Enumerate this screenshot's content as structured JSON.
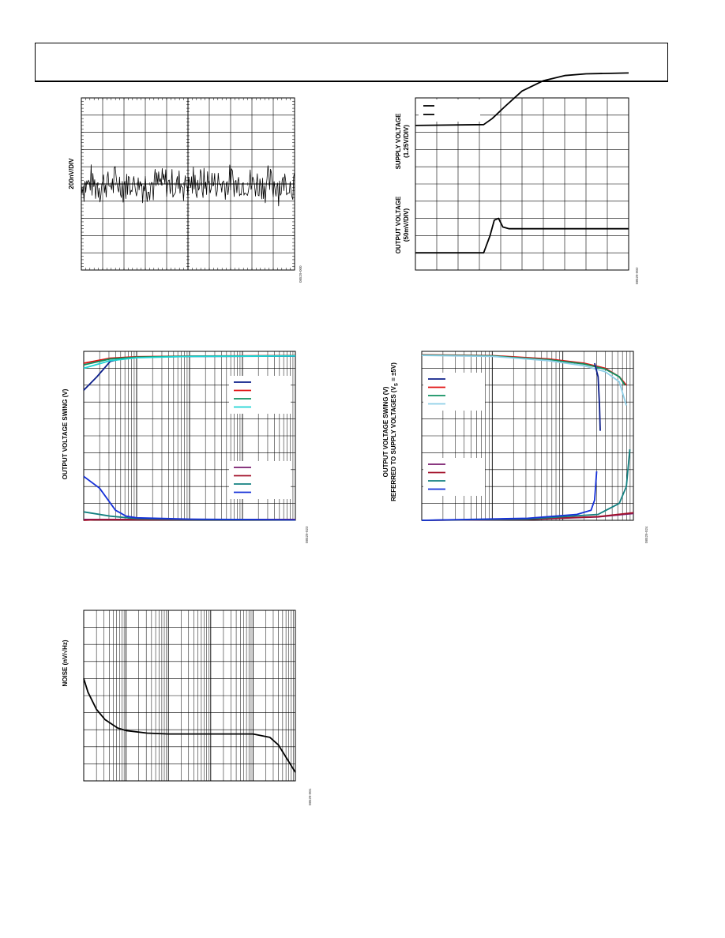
{
  "page": {
    "header_text": ""
  },
  "figures": [
    {
      "id": "noise-time",
      "ylabel": "200nV/DIV",
      "fig_id": "08529-000",
      "chart_data": {
        "type": "line",
        "x_divisions": 10,
        "y_divisions": 10,
        "grid": true,
        "minor_ticks": true,
        "series": [
          {
            "color": "#000000",
            "shape": "noise",
            "center_div": 5.0,
            "amplitude_div": 1.3
          }
        ]
      }
    },
    {
      "id": "supply-step",
      "ylabel_top": [
        "SUPPLY VOLTAGE",
        "(1.25V/DIV)"
      ],
      "ylabel_bottom": [
        "OUTPUT VOLTAGE",
        "(50mV/DIV)"
      ],
      "fig_id": "08529-002",
      "chart_data": {
        "type": "line",
        "x_divisions": 10,
        "y_divisions": 10,
        "grid": true,
        "legend": {
          "position": "top-left",
          "entries": [
            {
              "color": "#000000"
            },
            {
              "color": "#000000"
            }
          ]
        },
        "series": [
          {
            "color": "#000000",
            "points": [
              [
                0,
                8.4
              ],
              [
                3.2,
                8.45
              ],
              [
                3.6,
                8.8
              ],
              [
                4.2,
                9.5
              ],
              [
                5,
                10.4
              ],
              [
                6,
                11.0
              ],
              [
                7,
                11.3
              ],
              [
                8,
                11.4
              ],
              [
                10,
                11.45
              ]
            ]
          },
          {
            "color": "#000000",
            "points": [
              [
                0,
                1.0
              ],
              [
                3.2,
                1.0
              ],
              [
                3.5,
                2.0
              ],
              [
                3.7,
                2.9
              ],
              [
                3.9,
                3.0
              ],
              [
                4.1,
                2.5
              ],
              [
                4.4,
                2.4
              ],
              [
                6,
                2.4
              ],
              [
                10,
                2.4
              ]
            ]
          }
        ]
      }
    },
    {
      "id": "swing-vs-load",
      "ylabel": "OUTPUT VOLTAGE SWING (V)",
      "fig_id": "08529-023",
      "chart_data": {
        "type": "line",
        "xscale": "log",
        "x_decades": 4,
        "y_divisions": 10,
        "grid": true,
        "legend": [
          {
            "position": "upper-right",
            "entries": [
              {
                "color": "#0d1f8a"
              },
              {
                "color": "#e01010"
              },
              {
                "color": "#109060"
              },
              {
                "color": "#1ed4d4"
              }
            ]
          },
          {
            "position": "lower-right",
            "entries": [
              {
                "color": "#7a1c6e"
              },
              {
                "color": "#a3112a"
              },
              {
                "color": "#138080"
              },
              {
                "color": "#1530d8"
              }
            ]
          }
        ],
        "series": [
          {
            "color": "#0d1f8a",
            "points": [
              [
                0,
                7.7
              ],
              [
                0.25,
                8.5
              ],
              [
                0.5,
                9.4
              ],
              [
                0.7,
                9.55
              ],
              [
                1,
                9.65
              ],
              [
                2,
                9.7
              ],
              [
                4,
                9.72
              ]
            ]
          },
          {
            "color": "#e01010",
            "points": [
              [
                0,
                9.3
              ],
              [
                0.5,
                9.6
              ],
              [
                1,
                9.68
              ],
              [
                2,
                9.72
              ],
              [
                4,
                9.75
              ]
            ]
          },
          {
            "color": "#109060",
            "points": [
              [
                0,
                9.2
              ],
              [
                0.5,
                9.55
              ],
              [
                1,
                9.66
              ],
              [
                2,
                9.71
              ],
              [
                4,
                9.74
              ]
            ]
          },
          {
            "color": "#1ed4d4",
            "points": [
              [
                0,
                9.0
              ],
              [
                0.5,
                9.45
              ],
              [
                1,
                9.62
              ],
              [
                2,
                9.7
              ],
              [
                4,
                9.73
              ]
            ]
          },
          {
            "color": "#7a1c6e",
            "points": [
              [
                0,
                0.05
              ],
              [
                4,
                0.05
              ]
            ]
          },
          {
            "color": "#a3112a",
            "points": [
              [
                0,
                0.0
              ],
              [
                0.2,
                0.03
              ],
              [
                4,
                0.05
              ]
            ]
          },
          {
            "color": "#138080",
            "points": [
              [
                0,
                0.5
              ],
              [
                0.5,
                0.25
              ],
              [
                1,
                0.1
              ],
              [
                2,
                0.05
              ],
              [
                4,
                0.03
              ]
            ]
          },
          {
            "color": "#1530d8",
            "points": [
              [
                0,
                2.6
              ],
              [
                0.3,
                1.9
              ],
              [
                0.6,
                0.6
              ],
              [
                0.8,
                0.25
              ],
              [
                1,
                0.15
              ],
              [
                2,
                0.07
              ],
              [
                4,
                0.03
              ]
            ]
          }
        ]
      }
    },
    {
      "id": "swing-vs-current",
      "ylabel": [
        "OUTPUT VOLTAGE SWING (V)",
        "REFERRED TO SUPPLY VOLTAGES (V",
        "S",
        " = ±5V)"
      ],
      "fig_id": "08529-024",
      "chart_data": {
        "type": "line",
        "xscale": "log",
        "x_decades": 3,
        "y_divisions": 10,
        "grid": true,
        "legend": [
          {
            "position": "upper-left",
            "entries": [
              {
                "color": "#0d1f8a"
              },
              {
                "color": "#e01010"
              },
              {
                "color": "#109060"
              },
              {
                "color": "#8ecfe8"
              }
            ]
          },
          {
            "position": "lower-left",
            "entries": [
              {
                "color": "#7a1c6e"
              },
              {
                "color": "#a3112a"
              },
              {
                "color": "#138080"
              },
              {
                "color": "#1530d8"
              }
            ]
          }
        ],
        "series": [
          {
            "color": "#e01010",
            "points": [
              [
                0,
                9.8
              ],
              [
                1,
                9.75
              ],
              [
                1.8,
                9.55
              ],
              [
                2.3,
                9.3
              ],
              [
                2.6,
                9.0
              ],
              [
                2.8,
                8.5
              ],
              [
                2.9,
                8.0
              ]
            ]
          },
          {
            "color": "#109060",
            "points": [
              [
                0,
                9.78
              ],
              [
                1,
                9.73
              ],
              [
                1.8,
                9.5
              ],
              [
                2.3,
                9.25
              ],
              [
                2.6,
                8.95
              ],
              [
                2.8,
                8.5
              ],
              [
                2.88,
                8.0
              ]
            ]
          },
          {
            "color": "#8ecfe8",
            "points": [
              [
                0,
                9.76
              ],
              [
                1,
                9.7
              ],
              [
                1.8,
                9.45
              ],
              [
                2.3,
                9.15
              ],
              [
                2.6,
                8.8
              ],
              [
                2.8,
                8.2
              ],
              [
                2.9,
                6.8
              ]
            ]
          },
          {
            "color": "#0d1f8a",
            "points": [
              [
                2.45,
                9.3
              ],
              [
                2.5,
                8.5
              ],
              [
                2.52,
                6.8
              ],
              [
                2.53,
                5.3
              ]
            ]
          },
          {
            "color": "#7a1c6e",
            "points": [
              [
                0,
                0.0
              ],
              [
                1.5,
                0.05
              ],
              [
                2.5,
                0.2
              ],
              [
                3,
                0.4
              ]
            ]
          },
          {
            "color": "#a3112a",
            "points": [
              [
                0,
                0.0
              ],
              [
                1.5,
                0.06
              ],
              [
                2.5,
                0.22
              ],
              [
                3,
                0.45
              ]
            ]
          },
          {
            "color": "#138080",
            "points": [
              [
                0,
                0.0
              ],
              [
                1.5,
                0.08
              ],
              [
                2.5,
                0.35
              ],
              [
                2.8,
                1.0
              ],
              [
                2.9,
                2.0
              ],
              [
                2.95,
                4.2
              ]
            ]
          },
          {
            "color": "#1530d8",
            "points": [
              [
                0,
                0.0
              ],
              [
                1.5,
                0.12
              ],
              [
                2.2,
                0.35
              ],
              [
                2.4,
                0.6
              ],
              [
                2.45,
                1.2
              ],
              [
                2.48,
                2.9
              ]
            ]
          }
        ]
      }
    },
    {
      "id": "noise-density",
      "ylabel": "NOISE (nV/√Hz)",
      "fig_id": "08529-001",
      "chart_data": {
        "type": "line",
        "xscale": "log",
        "x_decades": 5,
        "y_divisions": 10,
        "grid": true,
        "series": [
          {
            "color": "#000000",
            "points": [
              [
                0,
                6.0
              ],
              [
                0.1,
                5.2
              ],
              [
                0.3,
                4.2
              ],
              [
                0.5,
                3.6
              ],
              [
                0.8,
                3.1
              ],
              [
                1,
                2.95
              ],
              [
                1.5,
                2.8
              ],
              [
                2,
                2.75
              ],
              [
                3,
                2.75
              ],
              [
                4,
                2.75
              ],
              [
                4.4,
                2.55
              ],
              [
                4.6,
                2.1
              ],
              [
                4.8,
                1.3
              ],
              [
                5,
                0.5
              ]
            ]
          }
        ]
      }
    }
  ]
}
